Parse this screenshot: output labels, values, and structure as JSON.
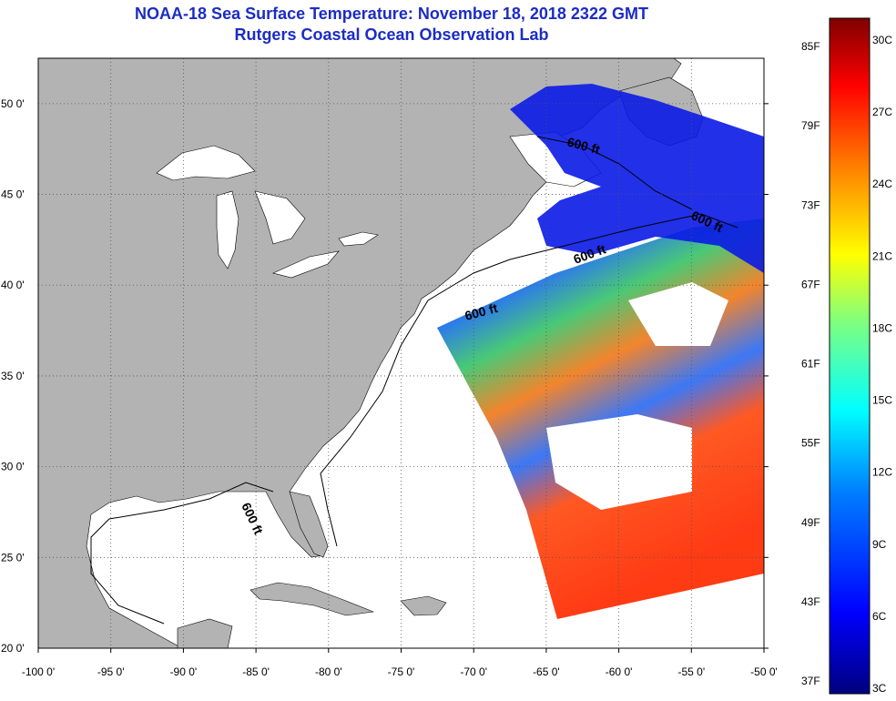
{
  "header": {
    "title": "NOAA-18 Sea Surface Temperature:  November 18, 2018 2322 GMT",
    "subtitle": "Rutgers Coastal Ocean Observation Lab"
  },
  "map": {
    "lon_range": [
      -100,
      -50
    ],
    "lat_range": [
      20,
      52.5
    ],
    "lon_ticks": [
      "-100 0'",
      "-95 0'",
      "-90 0'",
      "-85 0'",
      "-80 0'",
      "-75 0'",
      "-70 0'",
      "-65 0'",
      "-60 0'",
      "-55 0'",
      "-50 0'"
    ],
    "lat_ticks": [
      "20 0'",
      "25 0'",
      "30 0'",
      "35 0'",
      "40 0'",
      "45 0'",
      "50 0'"
    ],
    "depth_labels": [
      "600 ft",
      "600 ft",
      "600 ft",
      "600 ft",
      "600 ft"
    ],
    "colors": {
      "land": "#b3b3b3",
      "ocean": "#ffffff",
      "grid": "#555555"
    }
  },
  "colorbar": {
    "fahrenheit": [
      "85F",
      "79F",
      "73F",
      "67F",
      "61F",
      "55F",
      "49F",
      "43F",
      "37F"
    ],
    "celsius": [
      "30C",
      "27C",
      "24C",
      "21C",
      "18C",
      "15C",
      "12C",
      "9C",
      "6C",
      "3C"
    ],
    "stops": [
      "#00007f",
      "#0000ff",
      "#007fff",
      "#00ffff",
      "#7fff7f",
      "#ffff00",
      "#ff7f00",
      "#ff0000",
      "#7f0000"
    ]
  }
}
